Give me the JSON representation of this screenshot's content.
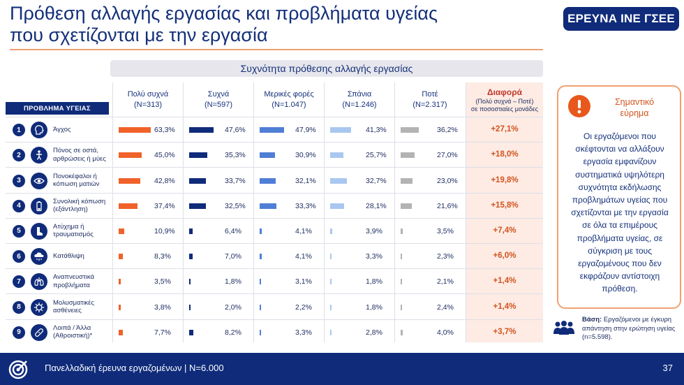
{
  "header": {
    "title_line1": "Πρόθεση αλλαγής εργασίας και προβλήματα υγείας",
    "title_line2": "που σχετίζονται με την εργασία",
    "badge": "ΕΡΕΥΝΑ ΙΝΕ ΓΣΕΕ"
  },
  "colors": {
    "very_often": "#f0622a",
    "often": "#0f2b7a",
    "sometimes": "#4f7ed6",
    "rarely": "#a9c7ef",
    "never": "#b3b3b3",
    "accent": "#d2541e",
    "navy": "#0f2b7a"
  },
  "chart_data": {
    "type": "table",
    "title": "Συχνότητα πρόθεσης αλλαγής εργασίας",
    "row_header": "ΠΡΟΒΛΗΜΑ ΥΓΕΙΑΣ",
    "columns": [
      {
        "label": "Πολύ συχνά",
        "n": "(N=313)"
      },
      {
        "label": "Συχνά",
        "n": "(N=597)"
      },
      {
        "label": "Μερικές φορές",
        "n": "(N=1.047)"
      },
      {
        "label": "Σπάνια",
        "n": "(N=1.246)"
      },
      {
        "label": "Ποτέ",
        "n": "(N=2.317)"
      }
    ],
    "diff_header": {
      "label": "Διαφορά",
      "sub1": "(Πολύ συχνά – Ποτέ)",
      "sub2": "σε ποσοστιαίες μονάδες"
    },
    "rows": [
      {
        "num": "1",
        "icon": "head-icon",
        "label1": "Άγχος",
        "label2": "",
        "values": [
          63.3,
          47.6,
          47.9,
          41.3,
          36.2
        ],
        "labels": [
          "63,3%",
          "47,6%",
          "47,9%",
          "41,3%",
          "36,2%"
        ],
        "diff": "+27,1%"
      },
      {
        "num": "2",
        "icon": "body-icon",
        "label1": "Πόνος σε οστά,",
        "label2": "αρθρώσεις ή μύες",
        "values": [
          45.0,
          35.3,
          30.9,
          25.7,
          27.0
        ],
        "labels": [
          "45,0%",
          "35,3%",
          "30,9%",
          "25,7%",
          "27,0%"
        ],
        "diff": "+18,0%"
      },
      {
        "num": "3",
        "icon": "eye-icon",
        "label1": "Πονοκέφαλοι ή",
        "label2": "κόπωση ματιών",
        "values": [
          42.8,
          33.7,
          32.1,
          32.7,
          23.0
        ],
        "labels": [
          "42,8%",
          "33,7%",
          "32,1%",
          "32,7%",
          "23,0%"
        ],
        "diff": "+19,8%"
      },
      {
        "num": "4",
        "icon": "battery-icon",
        "label1": "Συνολική κόπωση",
        "label2": "(εξάντληση)",
        "values": [
          37.4,
          32.5,
          33.3,
          28.1,
          21.6
        ],
        "labels": [
          "37,4%",
          "32,5%",
          "33,3%",
          "28,1%",
          "21,6%"
        ],
        "diff": "+15,8%"
      },
      {
        "num": "5",
        "icon": "accident-icon",
        "label1": "Ατύχημα ή",
        "label2": "τραυματισμός",
        "values": [
          10.9,
          6.4,
          4.1,
          3.9,
          3.5
        ],
        "labels": [
          "10,9%",
          "6,4%",
          "4,1%",
          "3,9%",
          "3,5%"
        ],
        "diff": "+7,4%"
      },
      {
        "num": "6",
        "icon": "cloud-icon",
        "label1": "Κατάθλιψη",
        "label2": "",
        "values": [
          8.3,
          7.0,
          4.1,
          3.3,
          2.3
        ],
        "labels": [
          "8,3%",
          "7,0%",
          "4,1%",
          "3,3%",
          "2,3%"
        ],
        "diff": "+6,0%"
      },
      {
        "num": "7",
        "icon": "lungs-icon",
        "label1": "Αναπνευστικά",
        "label2": "προβλήματα",
        "values": [
          3.5,
          1.8,
          3.1,
          1.8,
          2.1
        ],
        "labels": [
          "3,5%",
          "1,8%",
          "3,1%",
          "1,8%",
          "2,1%"
        ],
        "diff": "+1,4%"
      },
      {
        "num": "8",
        "icon": "virus-icon",
        "label1": "Μολυσματικές",
        "label2": "ασθένειες",
        "values": [
          3.8,
          2.0,
          2.2,
          1.8,
          2.4
        ],
        "labels": [
          "3,8%",
          "2,0%",
          "2,2%",
          "1,8%",
          "2,4%"
        ],
        "diff": "+1,4%"
      },
      {
        "num": "9",
        "icon": "bandage-icon",
        "label1": "Λοιπά / Άλλα",
        "label2": "(Αθροιστική)*",
        "values": [
          7.7,
          8.2,
          3.3,
          2.8,
          4.0
        ],
        "labels": [
          "7,7%",
          "8,2%",
          "3,3%",
          "2,8%",
          "4,0%"
        ],
        "diff": "+3,7%"
      }
    ]
  },
  "side": {
    "title_line1": "Σημαντικό",
    "title_line2": "εύρημα",
    "text_lines": [
      "Οι εργαζόμενοι που",
      "σκέφτονται να αλλάξουν",
      "εργασία εμφανίζουν",
      "συστηματικά υψηλότερη",
      "συχνότητα εκδήλωσης",
      "προβλημάτων υγείας που",
      "σχετίζονται με την εργασία",
      "σε όλα τα επιμέρους",
      "προβλήματα υγείας, σε",
      "σύγκριση με τους",
      "εργαζομένους που δεν",
      "εκφράζουν αντίστοιχη",
      "πρόθεση."
    ]
  },
  "basis": {
    "label": "Βάση:",
    "line1": "Εργαζόμενοι με έγκυρη",
    "line2": "απάντηση στην ερώτηση υγείας",
    "line3": "(n=5.598)."
  },
  "footer": {
    "text": "Πανελλαδική έρευνα εργαζομένων  |  N=6.000",
    "page": "37"
  }
}
